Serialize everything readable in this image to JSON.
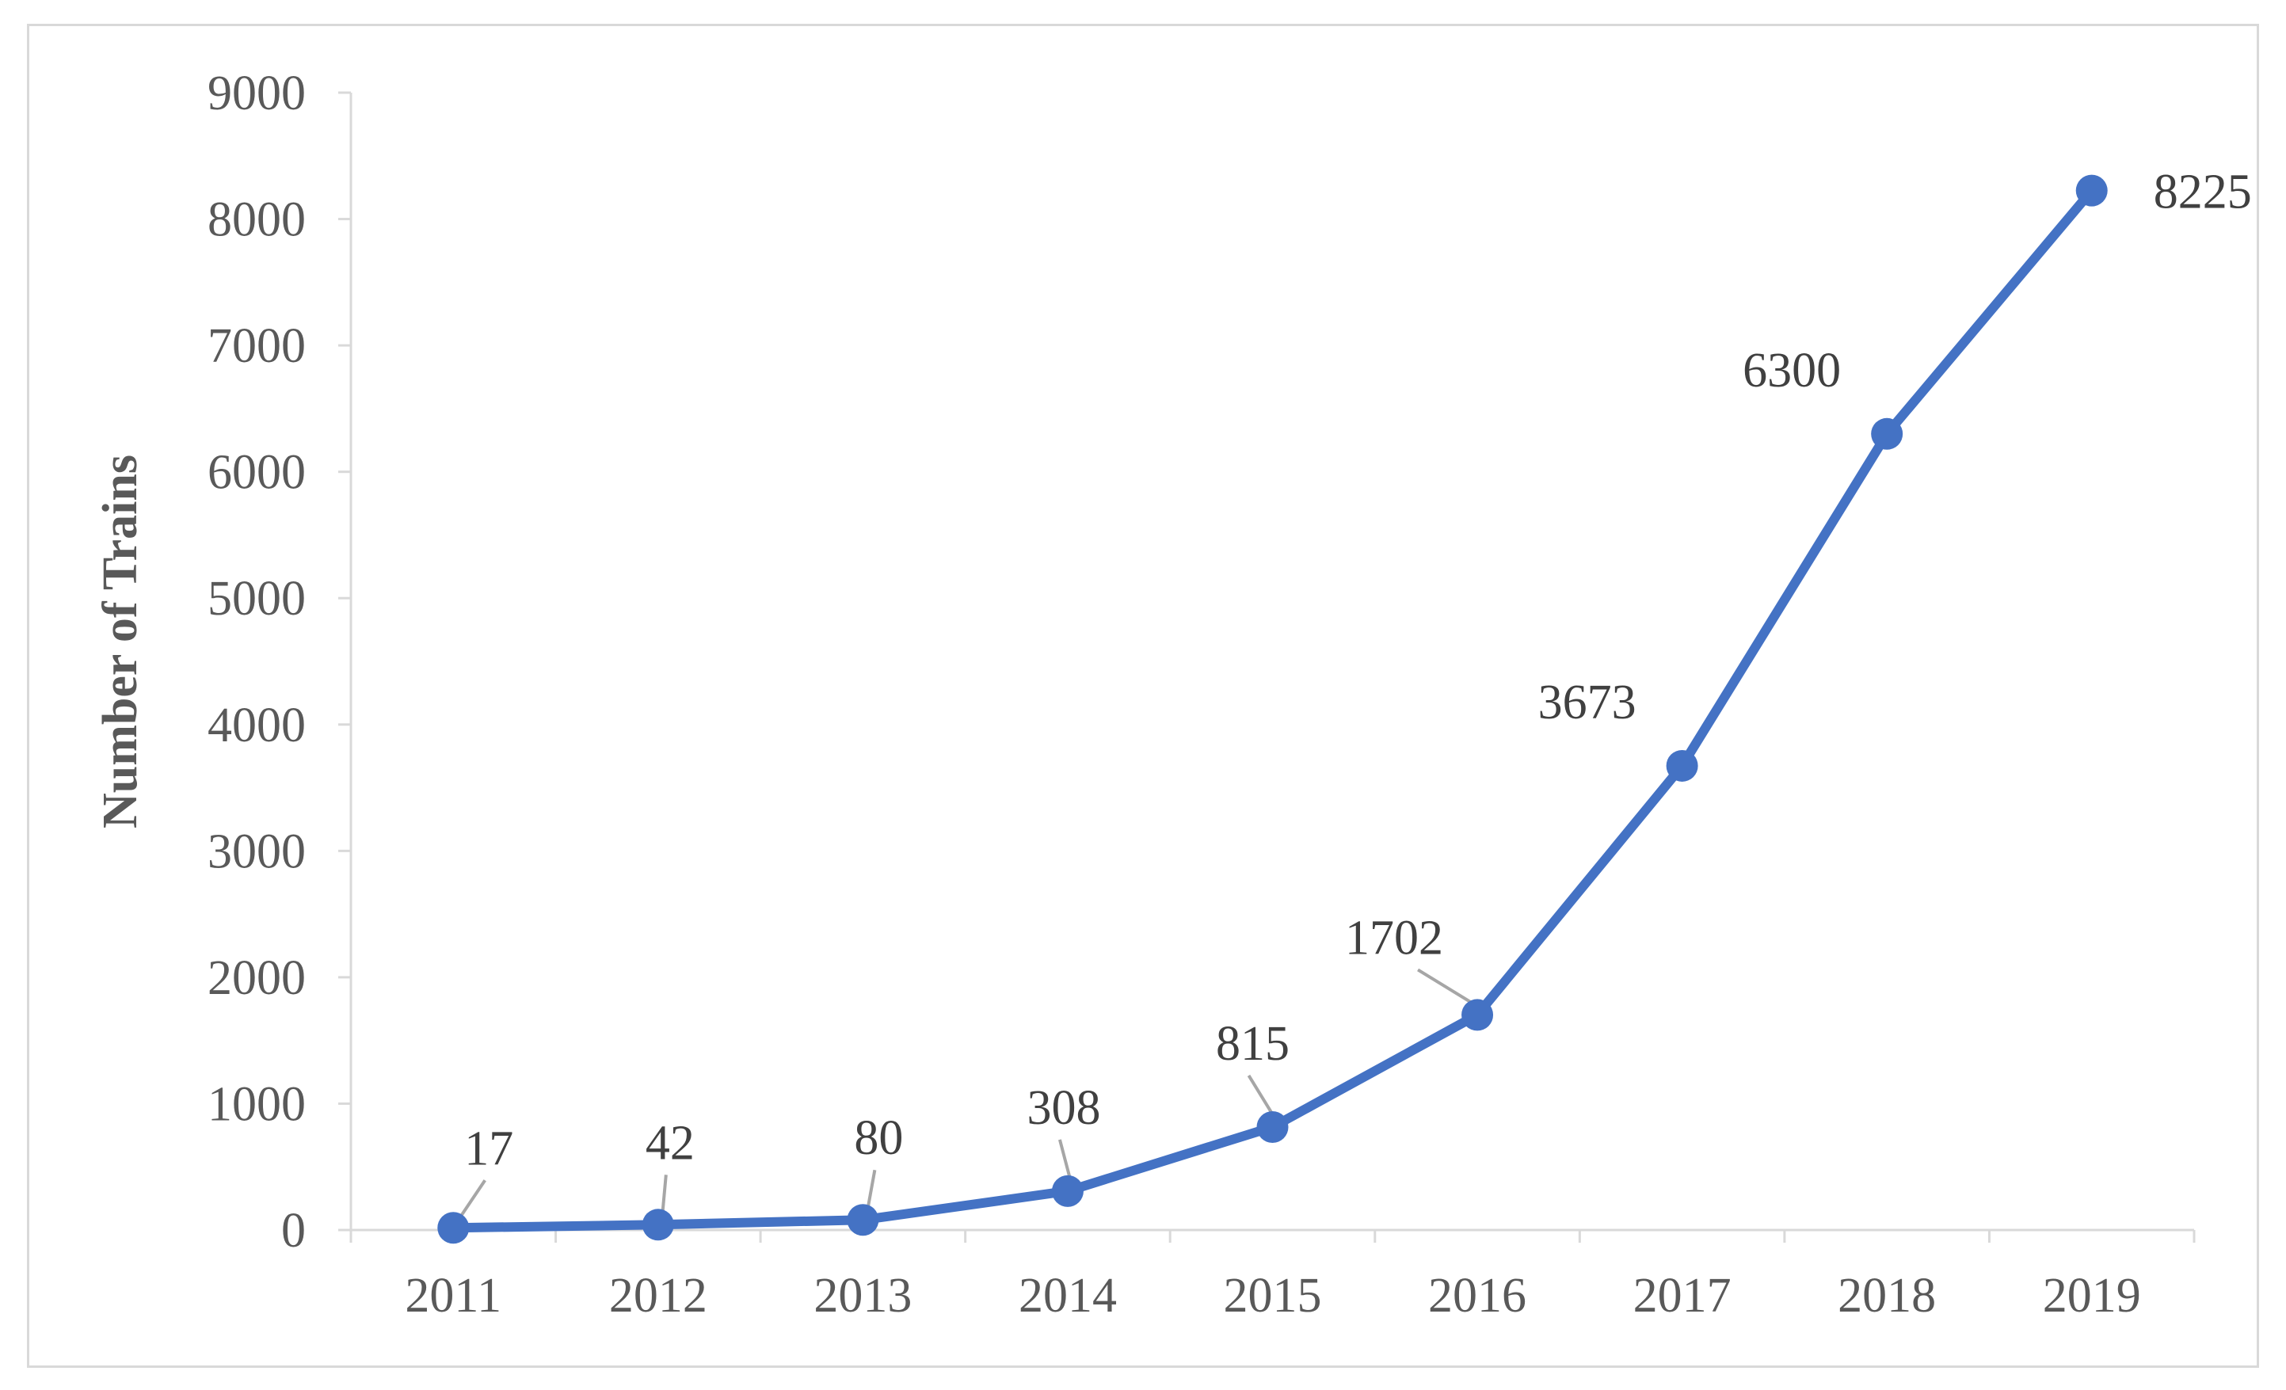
{
  "chart_data": {
    "type": "line",
    "title": "",
    "xlabel": "",
    "ylabel": "Number of Trains",
    "ylim": [
      0,
      9000
    ],
    "yticks": [
      "0",
      "1000",
      "2000",
      "3000",
      "4000",
      "5000",
      "6000",
      "7000",
      "8000",
      "9000"
    ],
    "categories": [
      "2011",
      "2012",
      "2013",
      "2014",
      "2015",
      "2016",
      "2017",
      "2018",
      "2019"
    ],
    "series": [
      {
        "values": [
          17,
          42,
          80,
          308,
          815,
          1702,
          3673,
          6300,
          8225
        ],
        "data_labels": [
          "17",
          "42",
          "80",
          "308",
          "815",
          "1702",
          "3673",
          "6300",
          "8225"
        ]
      }
    ],
    "grid": false,
    "legend": "none",
    "colors": {
      "series": "#4472c4",
      "axis": "#d9d9d9",
      "text": "#595959",
      "leader": "#a6a6a6"
    }
  }
}
